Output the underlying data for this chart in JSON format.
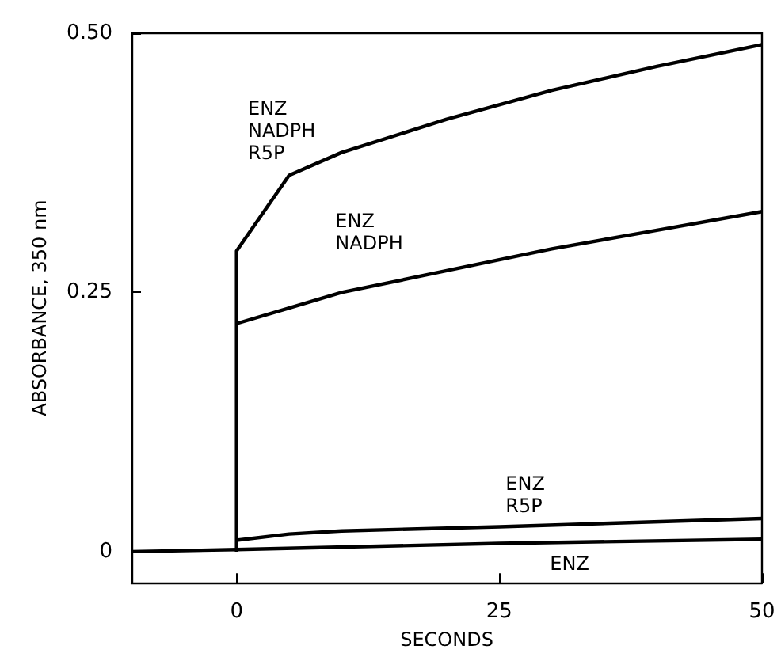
{
  "chart_data": {
    "type": "line",
    "xlabel": "SECONDS",
    "ylabel": "ABSORBANCE, 350 nm",
    "xlim": [
      -10,
      50
    ],
    "ylim": [
      -0.03,
      0.5
    ],
    "xticks": [
      0,
      25,
      50
    ],
    "yticks": [
      0,
      0.25,
      {
        "value": 0.5,
        "label": "0.50"
      }
    ],
    "grid": false,
    "marker": "none",
    "line_style": "solid",
    "series": [
      {
        "name": "ENZ\nNADPH\nR5P",
        "color": "#000000",
        "x": [
          0,
          0,
          5,
          10,
          20,
          30,
          40,
          50
        ],
        "values": [
          0,
          0.29,
          0.363,
          0.385,
          0.417,
          0.445,
          0.468,
          0.489
        ]
      },
      {
        "name": "ENZ\nNADPH",
        "color": "#000000",
        "x": [
          0,
          5,
          10,
          20,
          30,
          40,
          50
        ],
        "values": [
          0.22,
          0.235,
          0.25,
          0.271,
          0.292,
          0.31,
          0.328
        ]
      },
      {
        "name": "ENZ\nR5P",
        "color": "#000000",
        "x": [
          0,
          5,
          10,
          25,
          50
        ],
        "values": [
          0.011,
          0.017,
          0.02,
          0.024,
          0.032
        ]
      },
      {
        "name": "ENZ",
        "color": "#000000",
        "x": [
          -10,
          0,
          25,
          50
        ],
        "values": [
          0,
          0.002,
          0.008,
          0.012
        ]
      }
    ]
  }
}
